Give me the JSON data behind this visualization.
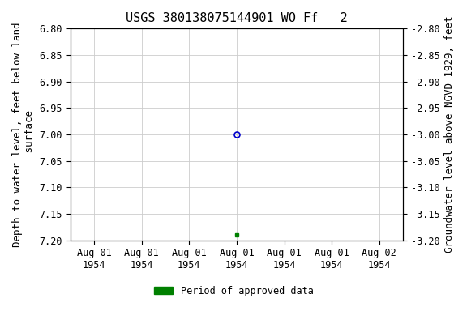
{
  "title": "USGS 380138075144901 WO Ff   2",
  "ylabel_left": "Depth to water level, feet below land\n surface",
  "ylabel_right": "Groundwater level above NGVD 1929, feet",
  "ylim_left": [
    6.8,
    7.2
  ],
  "ylim_right": [
    -2.8,
    -3.2
  ],
  "yticks_left": [
    6.8,
    6.85,
    6.9,
    6.95,
    7.0,
    7.05,
    7.1,
    7.15,
    7.2
  ],
  "yticks_right": [
    -2.8,
    -2.85,
    -2.9,
    -2.95,
    -3.0,
    -3.05,
    -3.1,
    -3.15,
    -3.2
  ],
  "xtick_labels": [
    "Aug 01\n1954",
    "Aug 01\n1954",
    "Aug 01\n1954",
    "Aug 01\n1954",
    "Aug 01\n1954",
    "Aug 01\n1954",
    "Aug 02\n1954"
  ],
  "data_point_open": {
    "x": 3,
    "value": 7.0
  },
  "data_point_filled": {
    "x": 3,
    "value": 7.19
  },
  "open_marker_color": "#0000cc",
  "filled_marker_color": "#008000",
  "legend_label": "Period of approved data",
  "legend_color": "#008000",
  "background_color": "white",
  "grid_color": "#cccccc",
  "font_family": "monospace",
  "title_fontsize": 11,
  "label_fontsize": 9,
  "tick_fontsize": 8.5
}
